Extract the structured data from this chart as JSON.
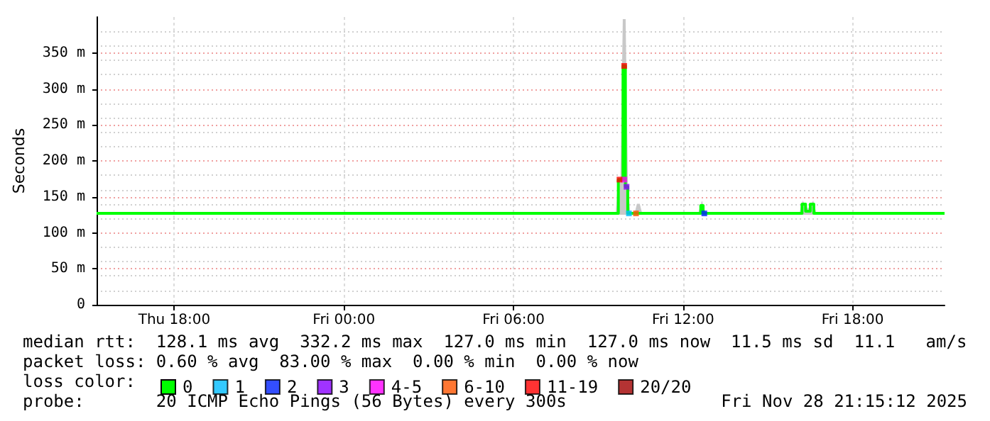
{
  "chart_data": {
    "type": "line",
    "ylabel": "Seconds",
    "legend_title": "loss color:",
    "legend": "bottom",
    "grid": true,
    "xlim": [
      "2025-11-27T15:15",
      "2025-11-28T21:15"
    ],
    "xticks": [
      {
        "value": "2025-11-27T18:00",
        "label": "Thu 18:00"
      },
      {
        "value": "2025-11-28T00:00",
        "label": "Fri 00:00"
      },
      {
        "value": "2025-11-28T06:00",
        "label": "Fri 06:00"
      },
      {
        "value": "2025-11-28T12:00",
        "label": "Fri 12:00"
      },
      {
        "value": "2025-11-28T18:00",
        "label": "Fri 18:00"
      }
    ],
    "ylim": [
      0,
      400
    ],
    "yticks": [
      0,
      {
        "value": 50,
        "label": "50 m"
      },
      {
        "value": 100,
        "label": "100 m"
      },
      {
        "value": 150,
        "label": "150 m"
      },
      {
        "value": 200,
        "label": "200 m"
      },
      {
        "value": 250,
        "label": "250 m"
      },
      {
        "value": 300,
        "label": "300 m"
      },
      {
        "value": 350,
        "label": "350 m"
      }
    ],
    "x": [
      "2025-11-27T15:15",
      "2025-11-28T09:40",
      "2025-11-28T09:45",
      "2025-11-28T09:50",
      "2025-11-28T09:55",
      "2025-11-28T10:00",
      "2025-11-28T10:05",
      "2025-11-28T10:20",
      "2025-11-28T10:25",
      "2025-11-28T10:30",
      "2025-11-28T12:35",
      "2025-11-28T12:40",
      "2025-11-28T12:45",
      "2025-11-28T16:10",
      "2025-11-28T16:15",
      "2025-11-28T16:25",
      "2025-11-28T16:35",
      "2025-11-28T16:40",
      "2025-11-28T21:15"
    ],
    "series": [
      {
        "name": "0",
        "color": "#00ff00",
        "values": [
          127,
          127,
          174,
          174,
          332,
          164,
          127,
          127,
          127,
          127,
          127,
          138,
          127,
          127,
          140,
          130,
          140,
          127,
          127
        ],
        "lower": [
          127,
          127,
          127,
          127,
          127,
          127,
          127,
          127,
          127,
          127,
          127,
          127,
          127,
          127,
          127,
          127,
          127,
          127,
          127
        ],
        "upper": [
          127,
          127,
          174,
          174,
          397,
          164,
          127,
          127,
          140,
          127,
          127,
          138,
          127,
          127,
          140,
          130,
          140,
          127,
          127
        ]
      },
      {
        "name": "1",
        "type": "scatter",
        "marker": "square",
        "color": "#00bbff",
        "x": [
          "2025-11-28T10:05"
        ],
        "values": [
          127
        ]
      },
      {
        "name": "2",
        "type": "scatter",
        "marker": "square",
        "color": "#0022ff",
        "x": [
          "2025-11-28T12:45"
        ],
        "values": [
          127
        ]
      },
      {
        "name": "3",
        "type": "scatter",
        "marker": "square",
        "color": "#8800ff",
        "x": [
          "2025-11-28T10:00"
        ],
        "values": [
          164
        ]
      },
      {
        "name": "4-5",
        "type": "scatter",
        "marker": "square",
        "color": "#ff00ff",
        "x": [
          "2025-11-28T09:55"
        ],
        "values": [
          174
        ]
      },
      {
        "name": "6-10",
        "type": "scatter",
        "marker": "square",
        "color": "#ff5500",
        "x": [
          "2025-11-28T10:20"
        ],
        "values": [
          127
        ]
      },
      {
        "name": "11-19",
        "type": "scatter",
        "marker": "square",
        "color": "#ff0000",
        "x": [
          "2025-11-28T09:45",
          "2025-11-28T09:55"
        ],
        "values": [
          174,
          332
        ]
      },
      {
        "name": "20/20",
        "type": "scatter",
        "marker": "square",
        "color": "#a10000",
        "values": [
          null,
          null,
          null,
          null,
          null,
          null,
          null,
          null,
          null,
          null,
          null,
          null,
          null,
          null,
          null,
          null,
          null,
          null,
          null
        ]
      }
    ],
    "annotations": [
      "median rtt:  128.1 ms avg  332.2 ms max  127.0 ms min  127.0 ms now  11.5 ms sd  11.1   am/s",
      "packet loss: 0.60 % avg  83.00 % max  0.00 % min  0.00 % now",
      "probe:       20 ICMP Echo Pings (56 Bytes) every 300s",
      "Fri Nov 28 21:15:12 2025"
    ]
  }
}
